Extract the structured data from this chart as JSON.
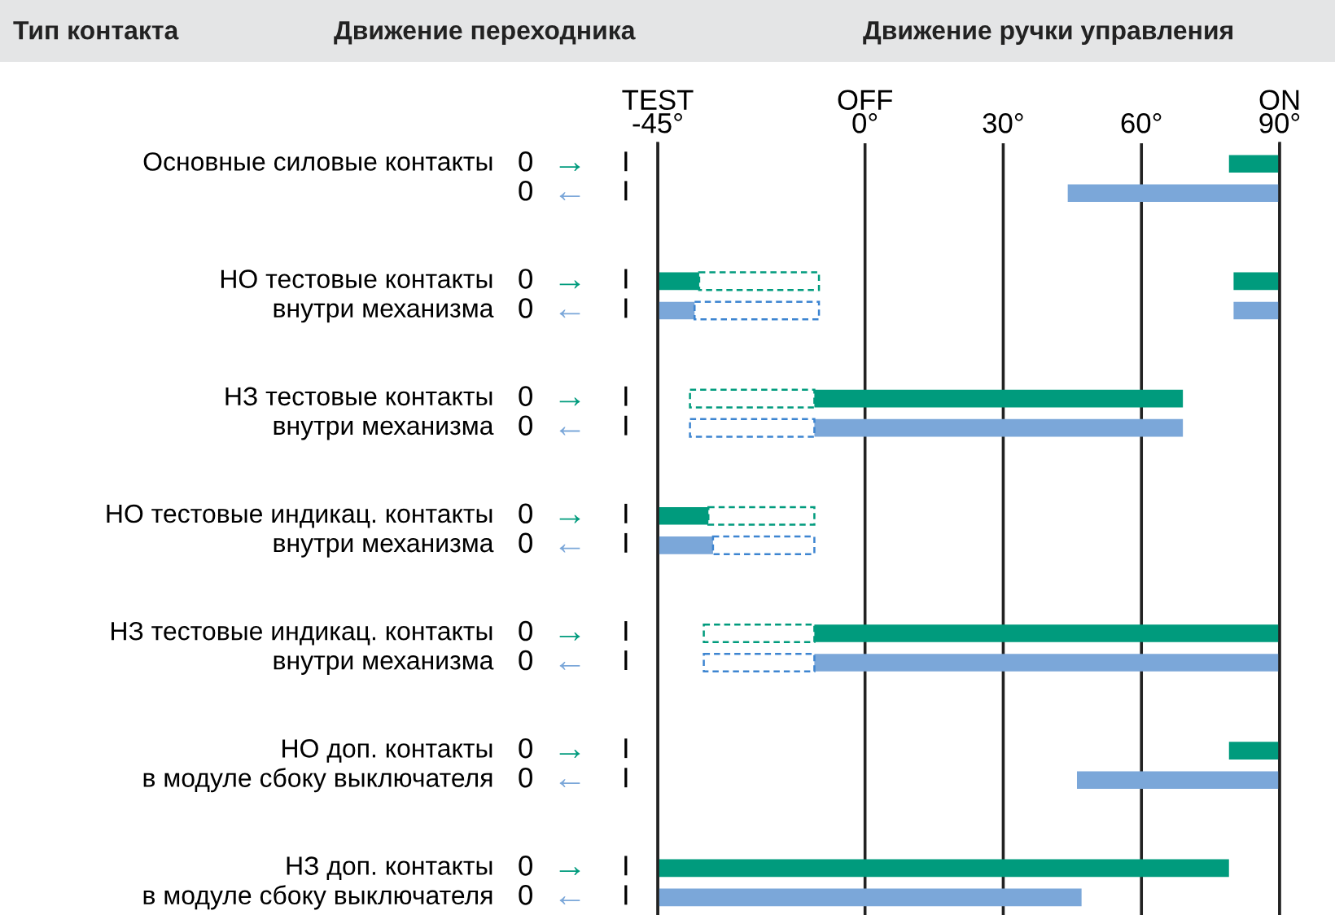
{
  "chart_data": {
    "type": "bar",
    "orientation": "horizontal",
    "annotations": [
      "Тип контакта",
      "Движение переходника",
      "Движение ручки управления"
    ],
    "categories": [
      "Основные силовые контакты",
      null,
      null,
      null,
      "НО тестовые контакты",
      "внутри механизма",
      null,
      null,
      "НЗ тестовые контакты",
      "внутри механизма",
      null,
      null,
      "НО тестовые индикац. контакты",
      "внутри механизма",
      null,
      null,
      "НЗ тестовые индикац. контакты",
      "внутри механизма",
      null,
      null,
      "НО доп. контакты",
      "в модуле сбоку выключателя",
      null,
      null,
      "НЗ доп. контакты",
      "в модуле сбоку выключателя"
    ],
    "xlim": [
      -45,
      90
    ],
    "xticks": [
      {
        "value": -45,
        "label": "TEST\n-45°"
      },
      {
        "value": 0,
        "label": "OFF\n0°"
      },
      {
        "value": 30,
        "label": "30°"
      },
      {
        "value": 60,
        "label": "60°"
      },
      {
        "value": 90,
        "label": "ON\n90°"
      }
    ],
    "grid": "x",
    "series": [
      {
        "name": "0 → I",
        "color": "#009b7d",
        "base": [
          79,
          null,
          null,
          null,
          -45,
          null,
          null,
          null,
          -11,
          null,
          null,
          null,
          -45,
          null,
          null,
          null,
          -11,
          null,
          null,
          null,
          79,
          null,
          null,
          null,
          -45,
          null
        ],
        "values": [
          11,
          null,
          null,
          null,
          9,
          null,
          null,
          null,
          80,
          null,
          null,
          null,
          11,
          null,
          null,
          null,
          101,
          null,
          null,
          null,
          11,
          null,
          null,
          null,
          124,
          null
        ]
      },
      {
        "name": "0 ← I",
        "color": "#7ba7d9",
        "base": [
          null,
          44,
          null,
          null,
          null,
          -45,
          null,
          null,
          null,
          -11,
          null,
          null,
          null,
          -45,
          null,
          null,
          null,
          -11,
          null,
          null,
          null,
          46,
          null,
          null,
          null,
          -45
        ],
        "values": [
          null,
          46,
          null,
          null,
          null,
          8,
          null,
          null,
          null,
          80,
          null,
          null,
          null,
          12,
          null,
          null,
          null,
          101,
          null,
          null,
          null,
          44,
          null,
          null,
          null,
          92
        ]
      },
      {
        "color": "#009b7d",
        "base": [
          null,
          null,
          null,
          null,
          80,
          null,
          null,
          null,
          null,
          null,
          null,
          null,
          null,
          null,
          null,
          null,
          null,
          null,
          null,
          null,
          null,
          null,
          null,
          null,
          null,
          null
        ],
        "values": [
          null,
          null,
          null,
          null,
          10,
          null,
          null,
          null,
          null,
          null,
          null,
          null,
          null,
          null,
          null,
          null,
          null,
          null,
          null,
          null,
          null,
          null,
          null,
          null,
          null,
          null
        ]
      },
      {
        "color": "#7ba7d9",
        "base": [
          null,
          null,
          null,
          null,
          null,
          80,
          null,
          null,
          null,
          null,
          null,
          null,
          null,
          null,
          null,
          null,
          null,
          null,
          null,
          null,
          null,
          null,
          null,
          null,
          null,
          null
        ],
        "values": [
          null,
          null,
          null,
          null,
          null,
          10,
          null,
          null,
          null,
          null,
          null,
          null,
          null,
          null,
          null,
          null,
          null,
          null,
          null,
          null,
          null,
          null,
          null,
          null,
          null,
          null
        ]
      },
      {
        "color": "#009b7d",
        "line_style": "dashed",
        "base": [
          null,
          null,
          null,
          null,
          -36,
          null,
          null,
          null,
          -38,
          null,
          null,
          null,
          -34,
          null,
          null,
          null,
          -35,
          null,
          null,
          null,
          null,
          null,
          null,
          null,
          null,
          null
        ],
        "values": [
          null,
          null,
          null,
          null,
          26,
          null,
          null,
          null,
          27,
          null,
          null,
          null,
          23,
          null,
          null,
          null,
          24,
          null,
          null,
          null,
          null,
          null,
          null,
          null,
          null,
          null
        ]
      },
      {
        "color": "#3d85d1",
        "line_style": "dashed",
        "base": [
          null,
          null,
          null,
          null,
          null,
          -37,
          null,
          null,
          null,
          -38,
          null,
          null,
          null,
          -33,
          null,
          null,
          null,
          -35,
          null,
          null,
          null,
          null,
          null,
          null,
          null,
          null
        ],
        "values": [
          null,
          null,
          null,
          null,
          null,
          27,
          null,
          null,
          null,
          27,
          null,
          null,
          null,
          22,
          null,
          null,
          null,
          24,
          null,
          null,
          null,
          null,
          null,
          null,
          null,
          null
        ]
      }
    ]
  }
}
